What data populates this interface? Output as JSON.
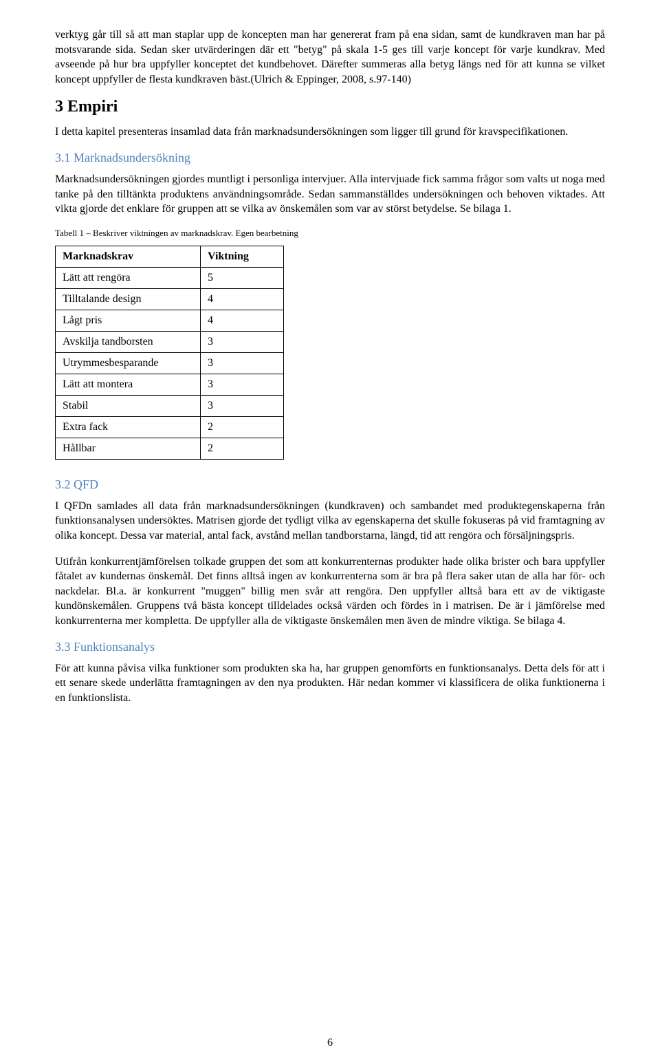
{
  "paragraphs": {
    "intro1": "verktyg går till så att man staplar upp de koncepten man har genererat fram på ena sidan, samt de kundkraven man har på motsvarande sida. Sedan sker utvärderingen där ett \"betyg\" på skala 1-5 ges till varje koncept för varje kundkrav. Med avseende på hur bra uppfyller konceptet det kundbehovet. Därefter summeras alla betyg längs ned för att kunna se vilket koncept uppfyller de flesta kundkraven bäst.(Ulrich & Eppinger, 2008, s.97-140)",
    "empiri_heading": "3 Empiri",
    "empiri_p": "I detta kapitel presenteras insamlad data från marknadsundersökningen som ligger till grund för kravspecifikationen.",
    "mkund_heading": "3.1 Marknadsundersökning",
    "mkund_p": "Marknadsundersökningen gjordes muntligt i personliga intervjuer. Alla intervjuade fick samma frågor som valts ut noga med tanke på den tilltänkta produktens användningsområde. Sedan sammanställdes undersökningen och behoven viktades. Att vikta gjorde det enklare för gruppen att se vilka av önskemålen som var av störst betydelse. Se bilaga 1.",
    "table_caption": "Tabell 1 – Beskriver viktningen av marknadskrav. Egen bearbetning",
    "qfd_heading": "3.2 QFD",
    "qfd_p1": "I QFDn samlades all data från marknadsundersökningen (kundkraven) och sambandet med produktegenskaperna från funktionsanalysen undersöktes. Matrisen gjorde det tydligt vilka av egenskaperna det skulle fokuseras på vid framtagning av olika koncept. Dessa var material, antal fack, avstånd mellan tandborstarna, längd, tid att rengöra och försäljningspris.",
    "qfd_p2": "Utifrån konkurrentjämförelsen tolkade gruppen det som att konkurrenternas produkter hade olika brister och bara uppfyller fåtalet av kundernas önskemål. Det finns alltså ingen av konkurrenterna som är bra på flera saker utan de alla har för- och nackdelar. Bl.a. är konkurrent \"muggen\" billig men svår att rengöra. Den uppfyller alltså bara ett av de viktigaste kundönskemålen. Gruppens två bästa koncept tilldelades också värden och fördes in i matrisen. De är i jämförelse med konkurrenterna mer kompletta. De uppfyller alla de viktigaste önskemålen men även de mindre viktiga. Se bilaga 4.",
    "funk_heading": "3.3 Funktionsanalys",
    "funk_p": "För att kunna påvisa vilka funktioner som produkten ska ha, har gruppen genomförts en funktionsanalys. Detta dels för att i ett senare skede underlätta framtagningen av den nya produkten. Här nedan kommer vi klassificera de olika funktionerna i en funktionslista."
  },
  "table": {
    "header_label": "Marknadskrav",
    "header_value": "Viktning",
    "rows": [
      {
        "label": "Lätt att rengöra",
        "value": "5"
      },
      {
        "label": "Tilltalande design",
        "value": "4"
      },
      {
        "label": "Lågt pris",
        "value": "4"
      },
      {
        "label": "Avskilja tandborsten",
        "value": "3"
      },
      {
        "label": "Utrymmesbesparande",
        "value": "3"
      },
      {
        "label": "Lätt att montera",
        "value": "3"
      },
      {
        "label": "Stabil",
        "value": "3"
      },
      {
        "label": "Extra fack",
        "value": "2"
      },
      {
        "label": "Hållbar",
        "value": "2"
      }
    ]
  },
  "page_number": "6",
  "colors": {
    "heading3": "#4f81bd",
    "text": "#000000",
    "background": "#ffffff",
    "table_border": "#000000"
  }
}
